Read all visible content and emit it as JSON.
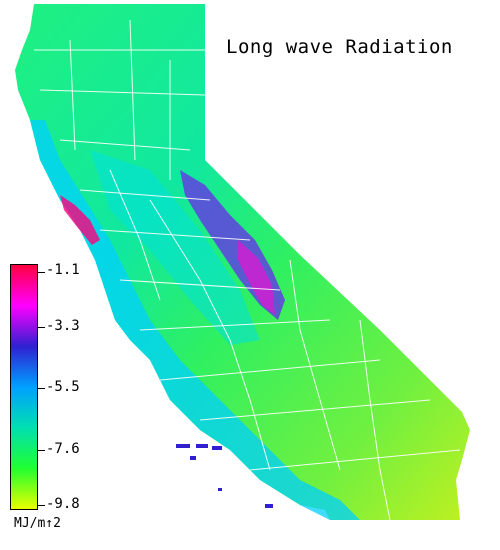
{
  "title": "Long wave Radiation",
  "legend": {
    "ticks": [
      "-1.1",
      "-3.3",
      "-5.5",
      "-7.6",
      "-9.8"
    ],
    "units": "MJ/m↑2",
    "color_stops": [
      "#ff0040",
      "#ff00ff",
      "#3020d0",
      "#00a0ff",
      "#00e0b0",
      "#20ff30",
      "#e8ff00"
    ]
  }
}
